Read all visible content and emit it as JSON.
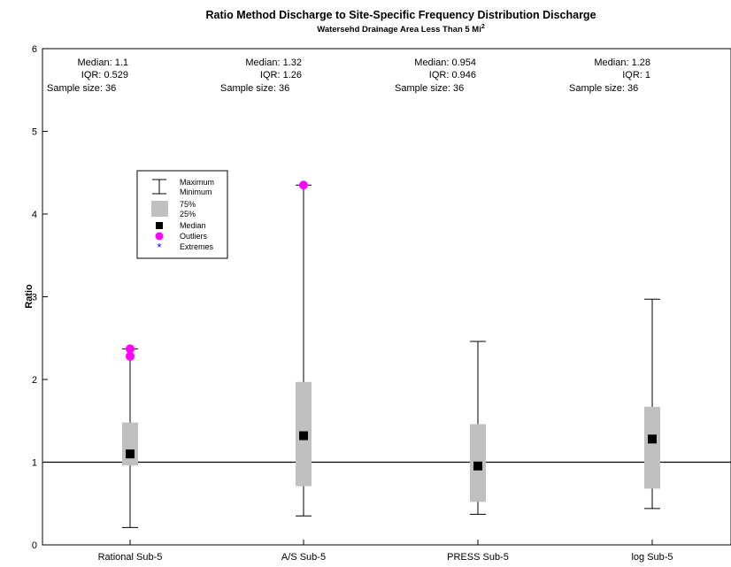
{
  "chart_data": {
    "type": "box",
    "title": "Ratio Method Discharge to Site-Specific Frequency Distribution Discharge",
    "subtitle": "Watersehd Drainage Area Less Than 5 Mi",
    "subtitle_superscript": "2",
    "xlabel": "",
    "ylabel": "Ratio",
    "ylim": [
      0,
      6
    ],
    "yticks": [
      "0",
      "1",
      "2",
      "3",
      "4",
      "5",
      "6"
    ],
    "reference_line": 1,
    "categories": [
      "Rational Sub-5",
      "A/S Sub-5",
      "PRESS Sub-5",
      "log Sub-5"
    ],
    "boxes": [
      {
        "min": 0.21,
        "q1": 0.96,
        "median": 1.1,
        "q3": 1.48,
        "max": 2.37,
        "outliers": [
          2.37,
          2.28
        ]
      },
      {
        "min": 0.35,
        "q1": 0.71,
        "median": 1.32,
        "q3": 1.97,
        "max": 4.35,
        "outliers": [
          4.35
        ]
      },
      {
        "min": 0.37,
        "q1": 0.52,
        "median": 0.954,
        "q3": 1.46,
        "max": 2.46,
        "outliers": []
      },
      {
        "min": 0.44,
        "q1": 0.68,
        "median": 1.28,
        "q3": 1.67,
        "max": 2.97,
        "outliers": []
      }
    ],
    "stats": [
      {
        "median": "Median: 1.1",
        "iqr": "IQR: 0.529",
        "n": "Sample size: 36"
      },
      {
        "median": "Median: 1.32",
        "iqr": "IQR: 1.26",
        "n": "Sample size: 36"
      },
      {
        "median": "Median: 0.954",
        "iqr": "IQR: 0.946",
        "n": "Sample size: 36"
      },
      {
        "median": "Median: 1.28",
        "iqr": "IQR: 1",
        "n": "Sample size: 36"
      }
    ],
    "legend": {
      "placement": "upper-left",
      "items": [
        "Maximum",
        "Minimum",
        "75%",
        "25%",
        "Median",
        "Outliers",
        "Extremes"
      ]
    },
    "colors": {
      "box": "#c0c0c0",
      "median": "#000000",
      "outlier": "#ff00ff",
      "extreme": "#0000ff",
      "axis": "#000000"
    }
  }
}
